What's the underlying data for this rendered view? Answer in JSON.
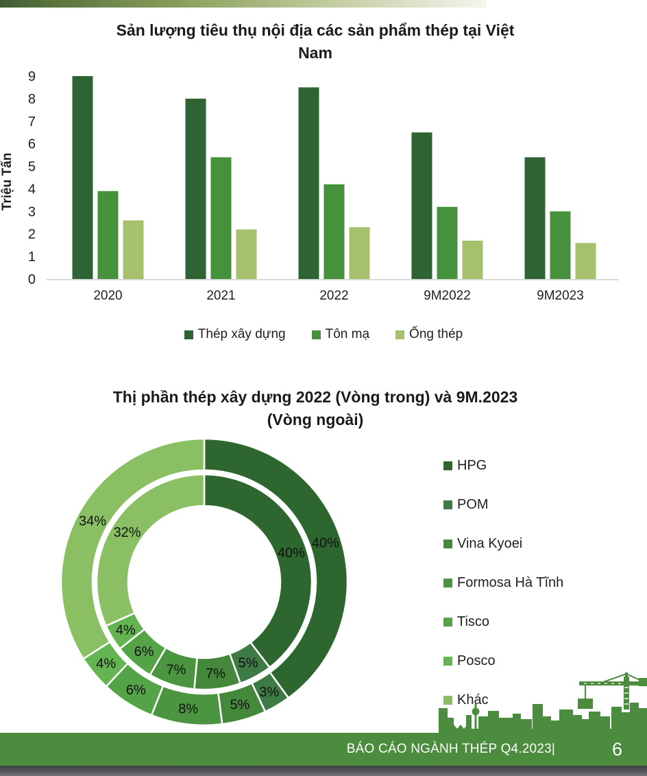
{
  "footer": {
    "report_title": "BÁO CÁO NGÀNH THÉP Q4.2023|",
    "page_number": "6"
  },
  "theme": {
    "footer_green": "#4c8c3e",
    "skyline_green": "#4c8c3e",
    "axis_line": "#d9d9d9",
    "text_dark": "#1f1f1f"
  },
  "chart_data": [
    {
      "type": "bar",
      "title": "Sản lượng tiêu thụ nội địa các sản phẩm thép tại Việt Nam",
      "title_lines": [
        "Sản lượng tiêu thụ nội địa các sản phẩm thép tại Việt",
        "Nam"
      ],
      "ylabel": "Triệu Tấn",
      "xlabel": "",
      "ylim": [
        0,
        9
      ],
      "ytick_step": 1,
      "grid": false,
      "legend_position": "bottom",
      "categories": [
        "2020",
        "2021",
        "2022",
        "9M2022",
        "9M2023"
      ],
      "series": [
        {
          "name": "Thép xây dựng",
          "color": "#2e6433",
          "values": [
            9.0,
            8.0,
            8.5,
            6.5,
            5.4
          ]
        },
        {
          "name": "Tôn mạ",
          "color": "#46913c",
          "values": [
            3.9,
            5.4,
            4.2,
            3.2,
            3.0
          ]
        },
        {
          "name": "Ống thép",
          "color": "#a6c16e",
          "values": [
            2.6,
            2.2,
            2.3,
            1.7,
            1.6
          ]
        }
      ]
    },
    {
      "type": "donut",
      "title": "Thị phần thép xây dựng 2022 (Vòng trong) và 9M.2023 (Vòng ngoài)",
      "title_lines": [
        "Thị phần thép xây dựng 2022 (Vòng trong) và 9M.2023",
        "(Vòng ngoài)"
      ],
      "legend_position": "right",
      "categories": [
        "HPG",
        "POM",
        "Vina Kyoei",
        "Formosa Hà Tĩnh",
        "Tisco",
        "Posco",
        "Khác"
      ],
      "colors": [
        "#2d662f",
        "#3e7a45",
        "#44883c",
        "#4c9540",
        "#55a347",
        "#65b452",
        "#8ac063"
      ],
      "rings": [
        {
          "name": "2022 (Vòng trong)",
          "values": [
            40,
            5,
            7,
            7,
            6,
            4,
            32
          ],
          "labels": [
            "40%",
            "5%",
            "7%",
            "7%",
            "6%",
            "4%",
            "32%"
          ]
        },
        {
          "name": "9M.2023 (Vòng ngoài)",
          "values": [
            40,
            3,
            5,
            8,
            6,
            4,
            34
          ],
          "labels": [
            "40%",
            "3%",
            "5%",
            "8%",
            "6%",
            "4%",
            "34%"
          ]
        }
      ]
    }
  ]
}
